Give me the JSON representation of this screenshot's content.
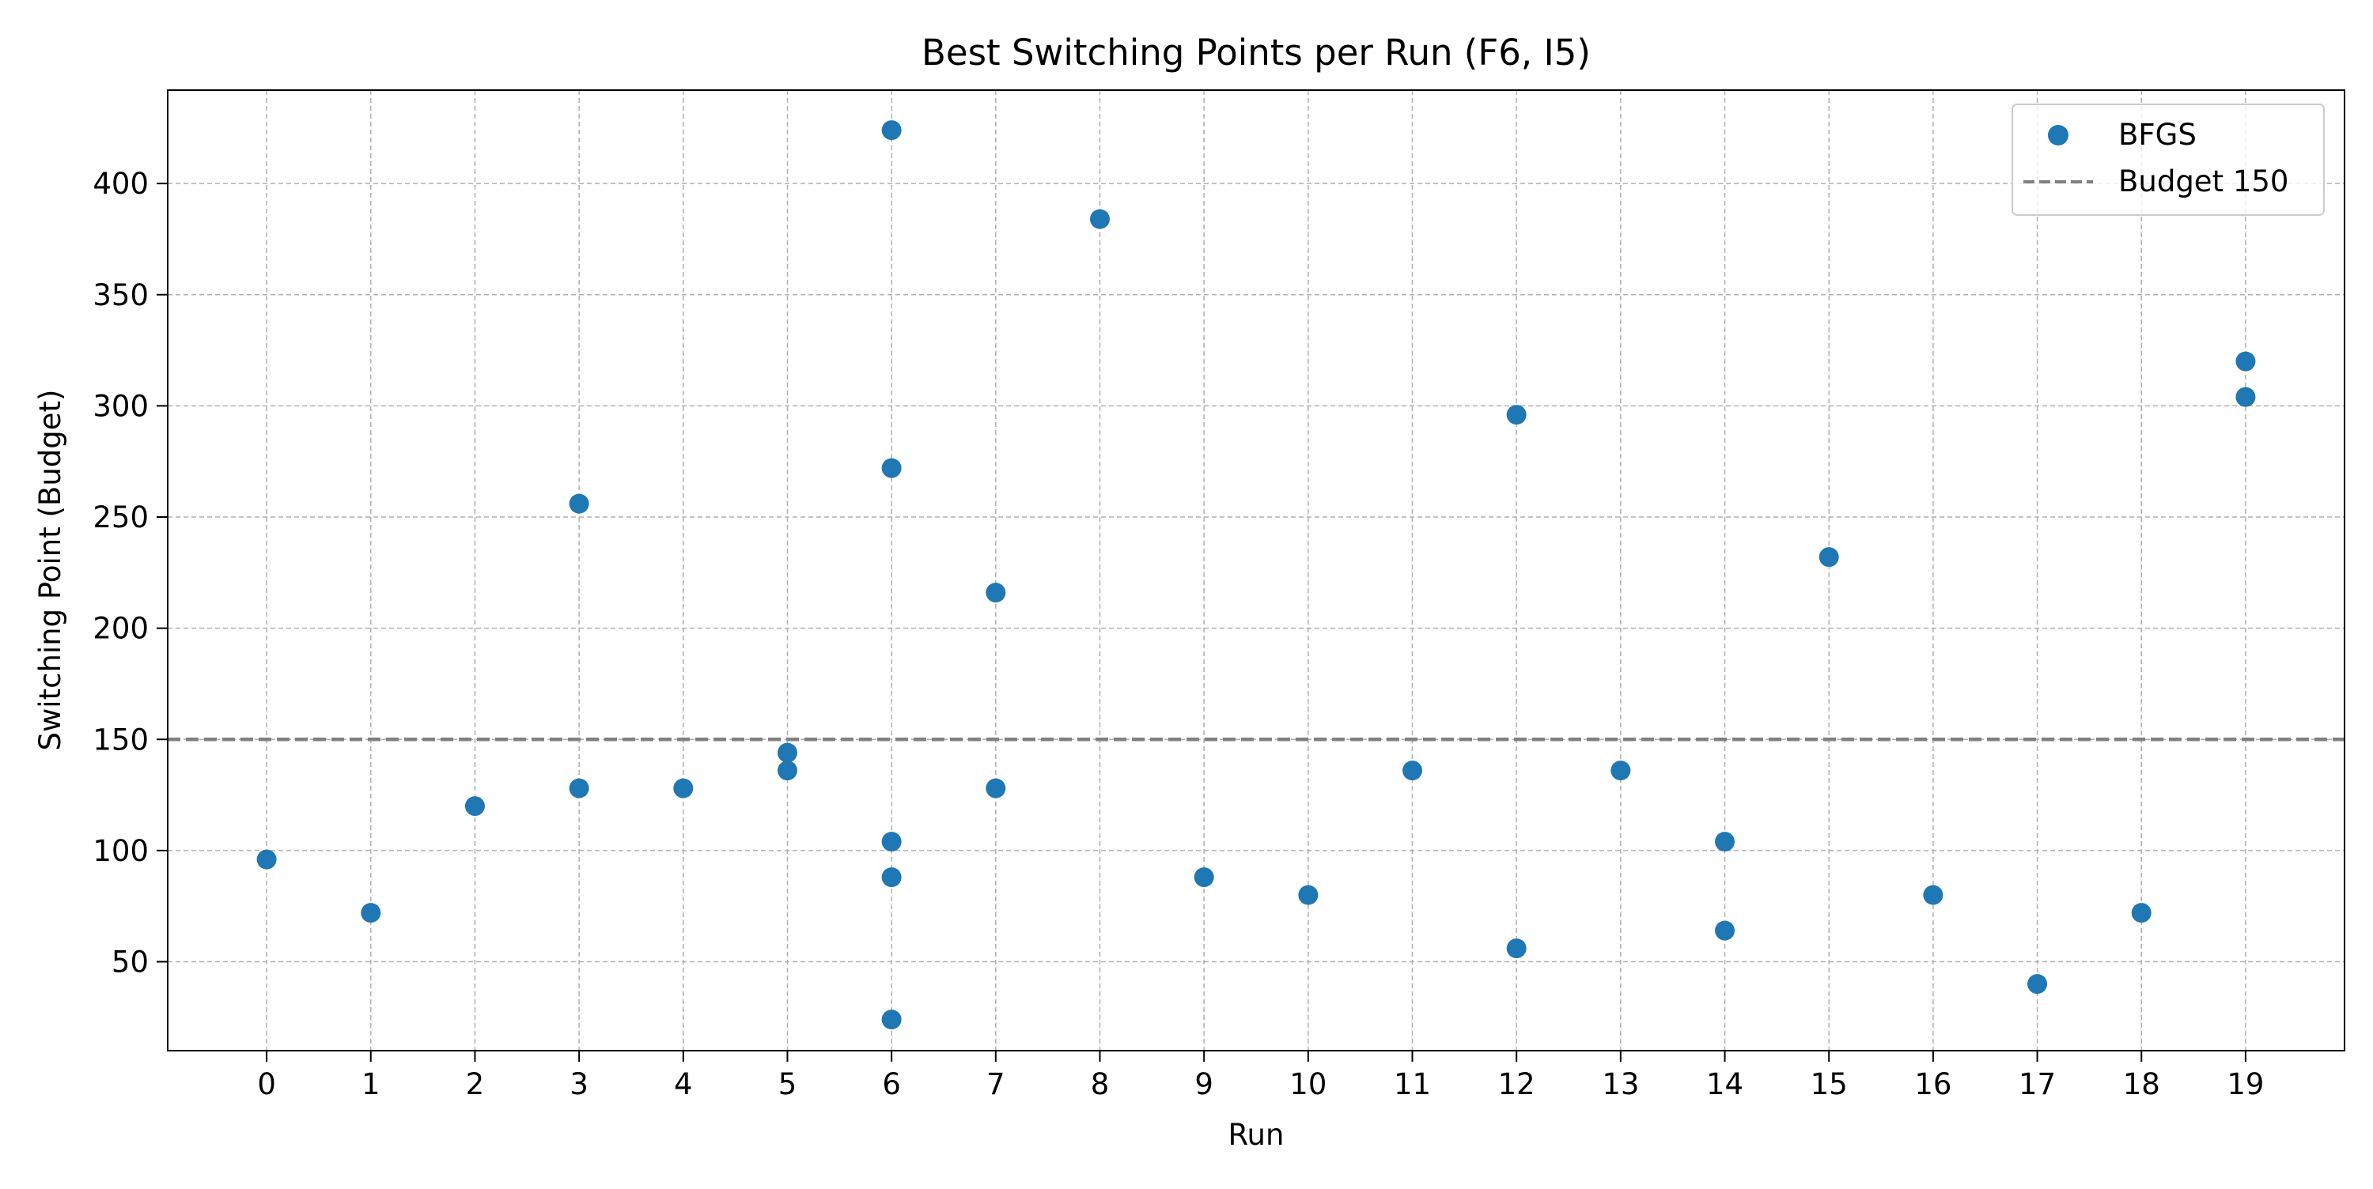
{
  "chart_data": {
    "type": "scatter",
    "title": "Best Switching Points per Run (F6, I5)",
    "xlabel": "Run",
    "ylabel": "Switching Point (Budget)",
    "xlim": [
      -0.95,
      19.95
    ],
    "ylim": [
      10,
      442
    ],
    "xticks": [
      0,
      1,
      2,
      3,
      4,
      5,
      6,
      7,
      8,
      9,
      10,
      11,
      12,
      13,
      14,
      15,
      16,
      17,
      18,
      19
    ],
    "yticks": [
      50,
      100,
      150,
      200,
      250,
      300,
      350,
      400
    ],
    "grid": true,
    "legend_position": "top-right",
    "series": [
      {
        "name": "BFGS",
        "color": "#1f77b4",
        "points": [
          {
            "x": 0,
            "y": 96
          },
          {
            "x": 1,
            "y": 72
          },
          {
            "x": 2,
            "y": 120
          },
          {
            "x": 3,
            "y": 256
          },
          {
            "x": 3,
            "y": 128
          },
          {
            "x": 4,
            "y": 128
          },
          {
            "x": 5,
            "y": 144
          },
          {
            "x": 5,
            "y": 136
          },
          {
            "x": 6,
            "y": 424
          },
          {
            "x": 6,
            "y": 272
          },
          {
            "x": 6,
            "y": 104
          },
          {
            "x": 6,
            "y": 88
          },
          {
            "x": 6,
            "y": 24
          },
          {
            "x": 7,
            "y": 216
          },
          {
            "x": 7,
            "y": 128
          },
          {
            "x": 8,
            "y": 384
          },
          {
            "x": 9,
            "y": 88
          },
          {
            "x": 10,
            "y": 80
          },
          {
            "x": 11,
            "y": 136
          },
          {
            "x": 12,
            "y": 296
          },
          {
            "x": 12,
            "y": 56
          },
          {
            "x": 13,
            "y": 136
          },
          {
            "x": 14,
            "y": 104
          },
          {
            "x": 14,
            "y": 64
          },
          {
            "x": 15,
            "y": 232
          },
          {
            "x": 16,
            "y": 80
          },
          {
            "x": 17,
            "y": 40
          },
          {
            "x": 18,
            "y": 72
          },
          {
            "x": 19,
            "y": 320
          },
          {
            "x": 19,
            "y": 304
          }
        ]
      }
    ],
    "reference_line": {
      "name": "Budget 150",
      "y": 150,
      "color": "#808080",
      "style": "dashed"
    }
  }
}
